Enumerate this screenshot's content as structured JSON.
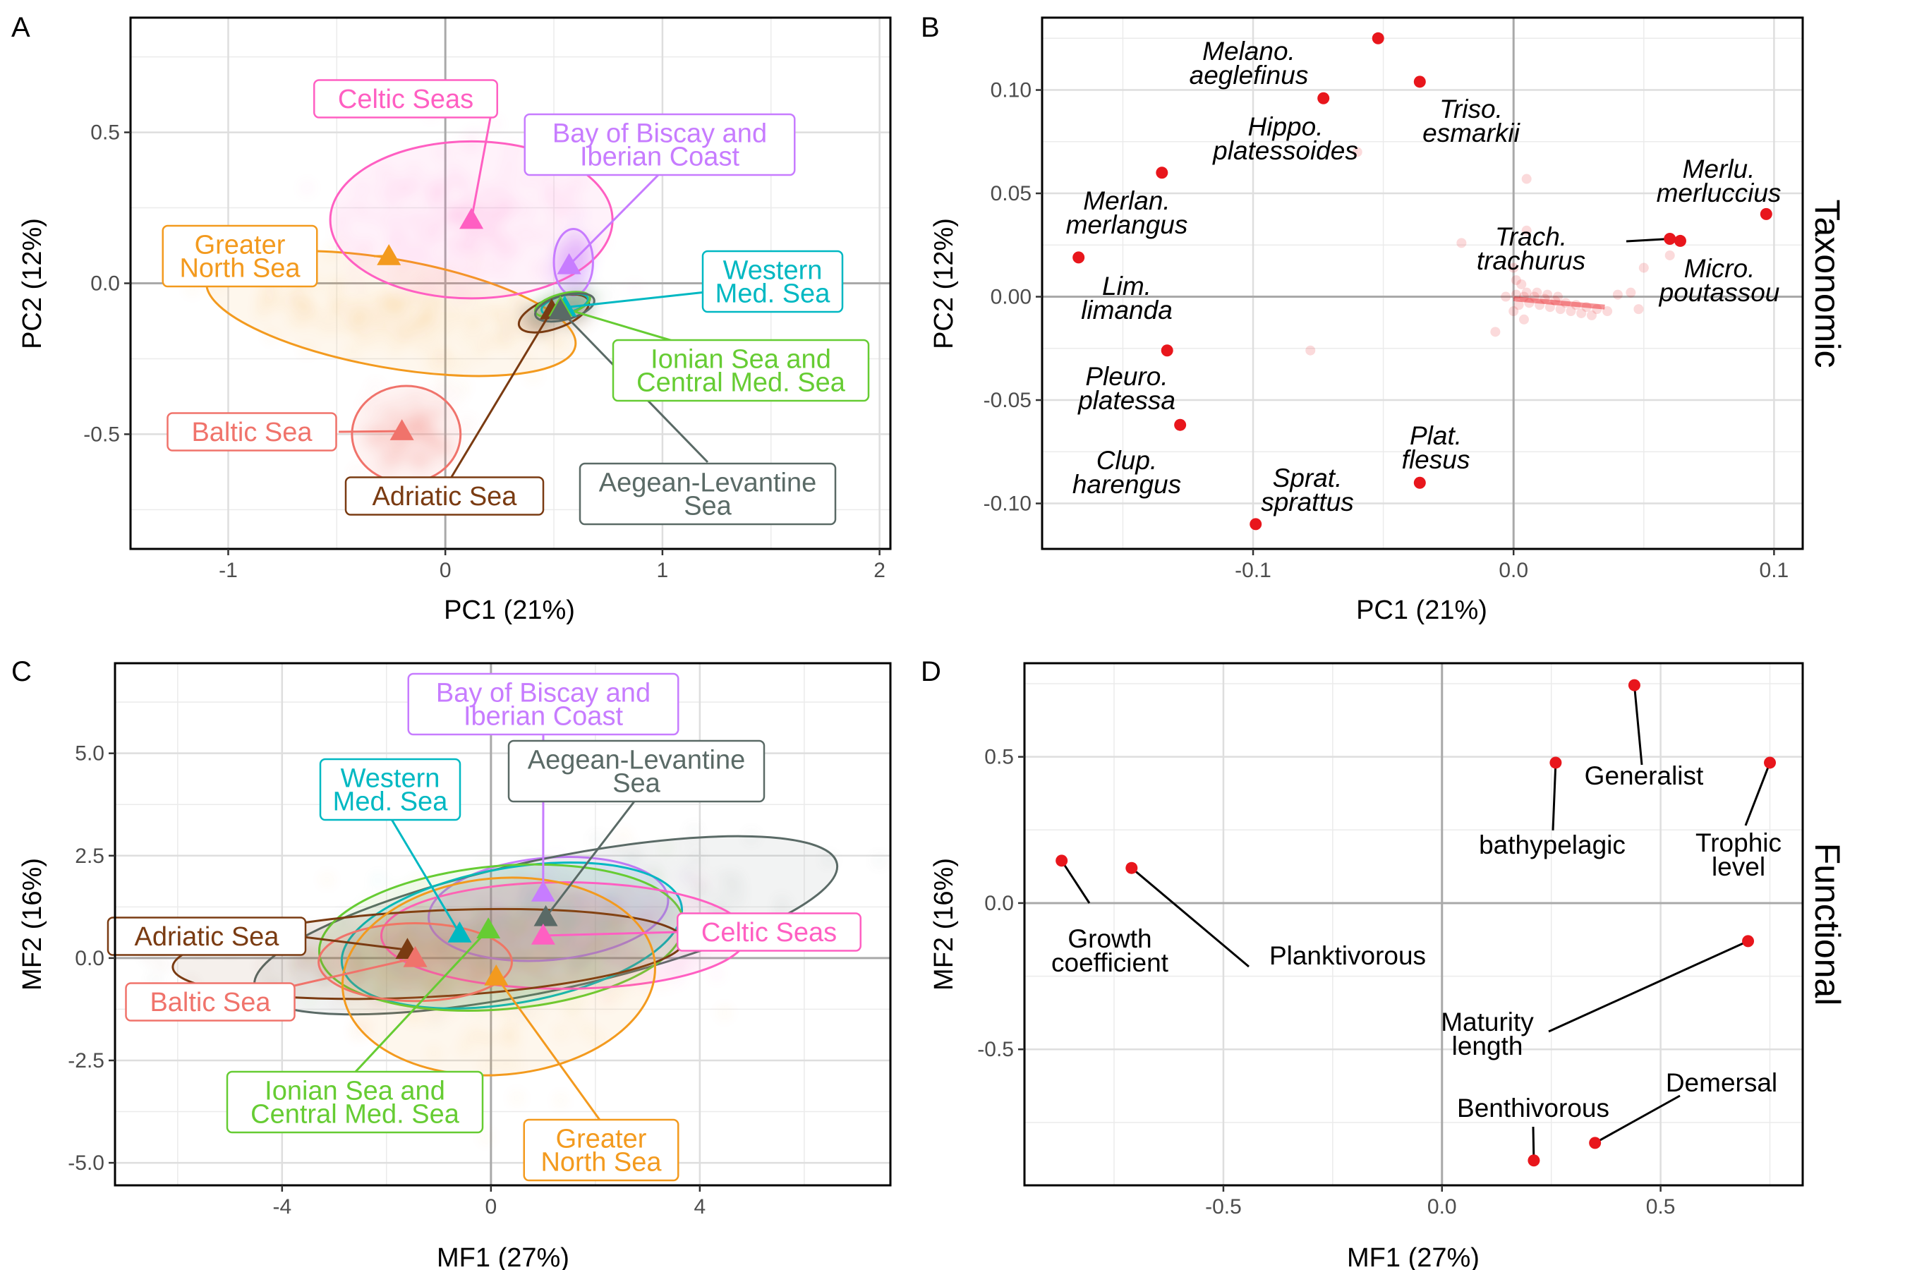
{
  "panels": {
    "A": {
      "letter": "A",
      "xlabel": "PC1 (21%)",
      "ylabel": "PC2 (12%)"
    },
    "B": {
      "letter": "B",
      "xlabel": "PC1 (21%)",
      "ylabel": "PC2 (12%)",
      "facet": "Taxonomic"
    },
    "C": {
      "letter": "C",
      "xlabel": "MF1 (27%)",
      "ylabel": "MF2 (16%)"
    },
    "D": {
      "letter": "D",
      "xlabel": "MF1 (27%)",
      "ylabel": "MF2 (16%)",
      "facet": "Functional"
    }
  },
  "colors": {
    "Greater North Sea": "#f39a1e",
    "Celtic Seas": "#ff5fc2",
    "Bay of Biscay and Iberian Coast": "#c77cff",
    "Baltic Sea": "#f0736b",
    "Adriatic Sea": "#7a3b12",
    "Western Med. Sea": "#00b8c2",
    "Ionian Sea and Central Med. Sea": "#66cc33",
    "Aegean-Levantine Sea": "#5a6a66",
    "points": "#e8161c"
  },
  "chart_data": [
    {
      "panel": "A",
      "type": "scatter",
      "xlabel": "PC1 (21%)",
      "ylabel": "PC2 (12%)",
      "xlim": [
        -1.45,
        2.05
      ],
      "ylim": [
        -0.88,
        0.88
      ],
      "xticks": [
        -1,
        0,
        1,
        2
      ],
      "yticks": [
        -0.5,
        0.0,
        0.5
      ],
      "xtick_labels": [
        "-1",
        "0",
        "1",
        "2"
      ],
      "ytick_labels": [
        "-0.5",
        "0.0",
        "0.5"
      ],
      "grid": true,
      "series": [
        {
          "name": "Greater North Sea",
          "label_lines": [
            "Greater",
            "North Sea"
          ],
          "centroid": [
            -0.26,
            0.09
          ],
          "ellipse": {
            "cx": -0.25,
            "cy": -0.1,
            "rx": 0.25,
            "ry": 0.62,
            "angle": 80
          }
        },
        {
          "name": "Celtic Seas",
          "label_lines": [
            "Celtic Seas"
          ],
          "centroid": [
            0.12,
            0.21
          ],
          "ellipse": {
            "cx": 0.12,
            "cy": 0.21,
            "rx": 0.65,
            "ry": 0.26,
            "angle": 0
          }
        },
        {
          "name": "Bay of Biscay and Iberian Coast",
          "label_lines": [
            "Bay of Biscay and",
            "Iberian Coast"
          ],
          "centroid": [
            0.57,
            0.06
          ],
          "ellipse": {
            "cx": 0.59,
            "cy": 0.07,
            "rx": 0.09,
            "ry": 0.11,
            "angle": 0
          }
        },
        {
          "name": "Baltic Sea",
          "label_lines": [
            "Baltic Sea"
          ],
          "centroid": [
            -0.2,
            -0.49
          ],
          "ellipse": {
            "cx": -0.18,
            "cy": -0.5,
            "rx": 0.25,
            "ry": 0.16,
            "angle": 0
          }
        },
        {
          "name": "Adriatic Sea",
          "label_lines": [
            "Adriatic Sea"
          ],
          "centroid": [
            0.49,
            -0.09
          ],
          "ellipse": {
            "cx": 0.5,
            "cy": -0.1,
            "rx": 0.17,
            "ry": 0.05,
            "angle": 20
          }
        },
        {
          "name": "Western Med. Sea",
          "label_lines": [
            "Western",
            "Med. Sea"
          ],
          "centroid": [
            0.55,
            -0.08
          ],
          "ellipse": {
            "cx": 0.55,
            "cy": -0.07,
            "rx": 0.11,
            "ry": 0.03,
            "angle": 15
          }
        },
        {
          "name": "Ionian Sea and Central Med. Sea",
          "label_lines": [
            "Ionian Sea and",
            "Central Med. Sea"
          ],
          "centroid": [
            0.53,
            -0.08
          ],
          "ellipse": {
            "cx": 0.54,
            "cy": -0.07,
            "rx": 0.13,
            "ry": 0.035,
            "angle": 15
          }
        },
        {
          "name": "Aegean-Levantine Sea",
          "label_lines": [
            "Aegean-Levantine",
            "Sea"
          ],
          "centroid": [
            0.53,
            -0.09
          ],
          "ellipse": {
            "cx": 0.55,
            "cy": -0.08,
            "rx": 0.14,
            "ry": 0.04,
            "angle": 15
          }
        }
      ]
    },
    {
      "panel": "B",
      "type": "scatter",
      "xlabel": "PC1 (21%)",
      "ylabel": "PC2 (12%)",
      "xlim": [
        -0.181,
        0.111
      ],
      "ylim": [
        -0.122,
        0.135
      ],
      "xticks": [
        -0.1,
        0.0,
        0.1
      ],
      "yticks": [
        -0.1,
        -0.05,
        0.0,
        0.05,
        0.1
      ],
      "xtick_labels": [
        "-0.1",
        "0.0",
        "0.1"
      ],
      "ytick_labels": [
        "-0.10",
        "-0.05",
        "0.00",
        "0.05",
        "0.10"
      ],
      "grid": true,
      "facet": "Taxonomic",
      "labelled_points": [
        {
          "lines": [
            "Melano.",
            "aeglefinus"
          ],
          "x": -0.052,
          "y": 0.125
        },
        {
          "lines": [
            "Triso.",
            "esmarkii"
          ],
          "x": -0.036,
          "y": 0.104
        },
        {
          "lines": [
            "Hippo.",
            "platessoides"
          ],
          "x": -0.073,
          "y": 0.096
        },
        {
          "lines": [
            "Merlan.",
            "merlangus"
          ],
          "x": -0.135,
          "y": 0.06
        },
        {
          "lines": [
            "Lim.",
            "limanda"
          ],
          "x": -0.167,
          "y": 0.019
        },
        {
          "lines": [
            "Pleuro.",
            "platessa"
          ],
          "x": -0.133,
          "y": -0.026
        },
        {
          "lines": [
            "Clup.",
            "harengus"
          ],
          "x": -0.128,
          "y": -0.062
        },
        {
          "lines": [
            "Sprat.",
            "sprattus"
          ],
          "x": -0.099,
          "y": -0.11
        },
        {
          "lines": [
            "Plat.",
            "flesus"
          ],
          "x": -0.036,
          "y": -0.09
        },
        {
          "lines": [
            "Merlu.",
            "merluccius"
          ],
          "x": 0.097,
          "y": 0.04
        },
        {
          "lines": [
            "Trach.",
            "trachurus"
          ],
          "x": 0.06,
          "y": 0.028
        },
        {
          "lines": [
            "Micro.",
            "poutassou"
          ],
          "x": 0.064,
          "y": 0.027
        }
      ],
      "faint_points": [
        [
          -0.06,
          0.07
        ],
        [
          -0.078,
          -0.026
        ],
        [
          0.005,
          0.057
        ],
        [
          0.005,
          0.032
        ],
        [
          -0.02,
          0.026
        ],
        [
          0.0,
          0.014
        ],
        [
          0.05,
          0.014
        ],
        [
          0.06,
          0.02
        ],
        [
          0.001,
          0.008
        ],
        [
          0.003,
          0.006
        ],
        [
          0.004,
          0.0
        ],
        [
          0.008,
          0.0
        ],
        [
          0.012,
          -0.001
        ],
        [
          0.016,
          -0.002
        ],
        [
          0.02,
          -0.003
        ],
        [
          0.024,
          -0.004
        ],
        [
          0.028,
          -0.005
        ],
        [
          0.032,
          -0.006
        ],
        [
          0.036,
          -0.007
        ],
        [
          0.04,
          0.001
        ],
        [
          0.045,
          0.002
        ],
        [
          0.048,
          -0.006
        ],
        [
          0.0,
          -0.007
        ],
        [
          -0.007,
          -0.017
        ],
        [
          0.004,
          -0.011
        ],
        [
          0.002,
          -0.004
        ],
        [
          0.006,
          -0.003
        ],
        [
          0.01,
          -0.004
        ],
        [
          0.014,
          -0.005
        ],
        [
          0.018,
          -0.006
        ],
        [
          0.022,
          -0.007
        ],
        [
          0.026,
          -0.008
        ],
        [
          0.03,
          -0.009
        ],
        [
          -0.003,
          0.0
        ],
        [
          0.001,
          0.001
        ],
        [
          0.005,
          0.002
        ],
        [
          0.009,
          0.002
        ],
        [
          0.013,
          0.001
        ],
        [
          0.017,
          0.0
        ]
      ]
    },
    {
      "panel": "C",
      "type": "scatter",
      "xlabel": "MF1 (27%)",
      "ylabel": "MF2 (16%)",
      "xlim": [
        -7.2,
        7.65
      ],
      "ylim": [
        -5.55,
        7.2
      ],
      "xticks": [
        -4,
        0,
        4
      ],
      "yticks": [
        -5.0,
        -2.5,
        0.0,
        2.5,
        5.0
      ],
      "xtick_labels": [
        "-4",
        "0",
        "4"
      ],
      "ytick_labels": [
        "-5.0",
        "-2.5",
        "0.0",
        "2.5",
        "5.0"
      ],
      "grid": true,
      "series": [
        {
          "name": "Bay of Biscay and Iberian Coast",
          "label_lines": [
            "Bay of Biscay and",
            "Iberian Coast"
          ],
          "centroid": [
            1.0,
            1.6
          ],
          "ellipse": {
            "cx": 1.1,
            "cy": 1.2,
            "rx": 2.3,
            "ry": 1.25,
            "angle": 5
          }
        },
        {
          "name": "Aegean-Levantine Sea",
          "label_lines": [
            "Aegean-Levantine",
            "Sea"
          ],
          "centroid": [
            1.05,
            1.0
          ],
          "ellipse": {
            "cx": 1.05,
            "cy": 0.8,
            "rx": 5.7,
            "ry": 1.6,
            "angle": 12
          }
        },
        {
          "name": "Western Med. Sea",
          "label_lines": [
            "Western",
            "Med. Sea"
          ],
          "centroid": [
            -0.6,
            0.6
          ],
          "ellipse": {
            "cx": 0.4,
            "cy": 0.55,
            "rx": 3.3,
            "ry": 1.65,
            "angle": 10
          }
        },
        {
          "name": "Ionian Sea and Central Med. Sea",
          "label_lines": [
            "Ionian Sea and",
            "Central Med. Sea"
          ],
          "centroid": [
            -0.05,
            0.7
          ],
          "ellipse": {
            "cx": 0.2,
            "cy": 0.5,
            "rx": 3.5,
            "ry": 1.75,
            "angle": 5
          }
        },
        {
          "name": "Celtic Seas",
          "label_lines": [
            "Celtic Seas"
          ],
          "centroid": [
            1.0,
            0.55
          ],
          "ellipse": {
            "cx": 1.4,
            "cy": 0.55,
            "rx": 3.5,
            "ry": 1.3,
            "angle": 0
          }
        },
        {
          "name": "Adriatic Sea",
          "label_lines": [
            "Adriatic Sea"
          ],
          "centroid": [
            -1.6,
            0.2
          ],
          "ellipse": {
            "cx": -1.2,
            "cy": 0.1,
            "rx": 4.9,
            "ry": 1.05,
            "angle": 3
          }
        },
        {
          "name": "Baltic Sea",
          "label_lines": [
            "Baltic Sea"
          ],
          "centroid": [
            -1.45,
            0.0
          ],
          "ellipse": {
            "cx": -1.45,
            "cy": -0.1,
            "rx": 1.85,
            "ry": 0.95,
            "angle": 0
          }
        },
        {
          "name": "Greater North Sea",
          "label_lines": [
            "Greater",
            "North Sea"
          ],
          "centroid": [
            0.1,
            -0.45
          ],
          "ellipse": {
            "cx": 0.15,
            "cy": -0.45,
            "rx": 3.0,
            "ry": 2.4,
            "angle": 5
          }
        }
      ]
    },
    {
      "panel": "D",
      "type": "scatter",
      "xlabel": "MF1 (27%)",
      "ylabel": "MF2 (16%)",
      "xlim": [
        -0.955,
        0.825
      ],
      "ylim": [
        -0.965,
        0.82
      ],
      "xticks": [
        -0.5,
        0.0,
        0.5
      ],
      "yticks": [
        -0.5,
        0.0,
        0.5
      ],
      "xtick_labels": [
        "-0.5",
        "0.0",
        "0.5"
      ],
      "ytick_labels": [
        "-0.5",
        "0.0",
        "0.5"
      ],
      "grid": true,
      "facet": "Functional",
      "labelled_points": [
        {
          "lines": [
            "Generalist"
          ],
          "x": 0.44,
          "y": 0.745
        },
        {
          "lines": [
            "bathypelagic"
          ],
          "x": 0.26,
          "y": 0.48
        },
        {
          "lines": [
            "Trophic",
            "level"
          ],
          "x": 0.75,
          "y": 0.48
        },
        {
          "lines": [
            "Growth",
            "coefficient"
          ],
          "x": -0.87,
          "y": 0.145
        },
        {
          "lines": [
            "Planktivorous"
          ],
          "x": -0.71,
          "y": 0.12
        },
        {
          "lines": [
            "Maturity",
            "length"
          ],
          "x": 0.7,
          "y": -0.13
        },
        {
          "lines": [
            "Demersal"
          ],
          "x": 0.35,
          "y": -0.82
        },
        {
          "lines": [
            "Benthivorous"
          ],
          "x": 0.21,
          "y": -0.88
        }
      ]
    }
  ]
}
